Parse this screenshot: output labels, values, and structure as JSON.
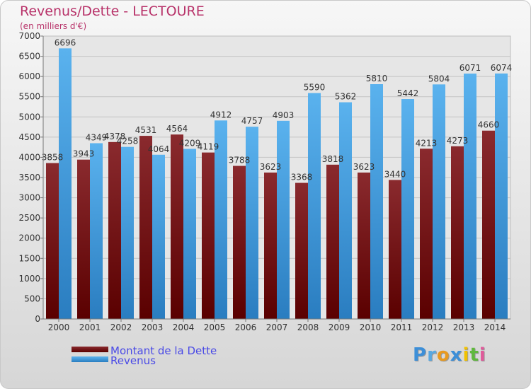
{
  "title": "Revenus/Dette - LECTOURE",
  "subtitle": "(en milliers d'€)",
  "logo": "Proxiti",
  "colors": {
    "dette": "#7a0f14",
    "revenus": "#3d9de4",
    "title": "#b8336a",
    "legend_text": "#4a4ae6"
  },
  "chart_data": {
    "type": "bar",
    "categories": [
      "2000",
      "2001",
      "2002",
      "2003",
      "2004",
      "2005",
      "2006",
      "2007",
      "2008",
      "2009",
      "2010",
      "2011",
      "2012",
      "2013",
      "2014"
    ],
    "series": [
      {
        "name": "Montant de la Dette",
        "values": [
          3858,
          3943,
          4378,
          4531,
          4564,
          4119,
          3788,
          3623,
          3368,
          3818,
          3623,
          3440,
          4213,
          4273,
          4660
        ]
      },
      {
        "name": "Revenus",
        "values": [
          6696,
          4349,
          4258,
          4064,
          4209,
          4912,
          4757,
          4903,
          5590,
          5362,
          5810,
          5442,
          5804,
          6071,
          6074
        ]
      }
    ],
    "value_labels": {
      "Montant de la Dette": [
        "3858",
        "3943",
        "4378",
        "4531",
        "4564",
        "4119",
        "3788",
        "3623",
        "3368",
        "3818",
        "3623",
        "3440",
        "4213",
        "4273",
        "4660"
      ],
      "Revenus": [
        "6696",
        "4349",
        "4258",
        "4064",
        "4209",
        "4912",
        "4757",
        "4903",
        "5590",
        "5362",
        "5810",
        "5442",
        "5804",
        "6071",
        "6074"
      ]
    },
    "yticks": [
      "0",
      "500",
      "1000",
      "1500",
      "2000",
      "2500",
      "3000",
      "3500",
      "4000",
      "4500",
      "5000",
      "5500",
      "6000",
      "6500",
      "7000"
    ],
    "ylim": [
      0,
      7000
    ],
    "grid": true,
    "legend": "bottom-left"
  }
}
